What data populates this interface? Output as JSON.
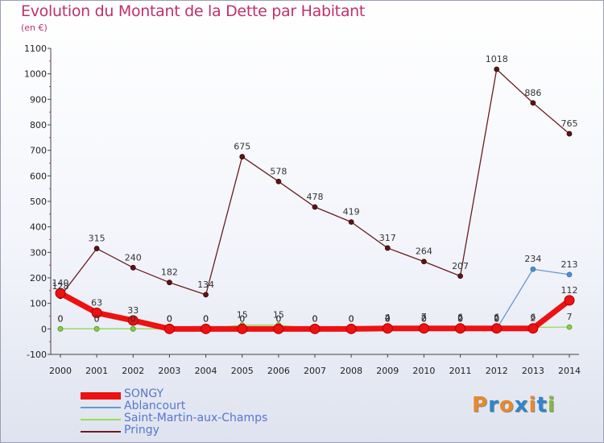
{
  "title": "Evolution du Montant de la Dette par Habitant",
  "subtitle": "(en €)",
  "logo_text": "Proxiti",
  "colors": {
    "title": "#c0306a",
    "legend_text": "#5577cc",
    "logo": [
      "#e8892b",
      "#2f86c9",
      "#e8892b",
      "#2f86c9",
      "#e8892b",
      "#2f86c9",
      "#86b83a"
    ]
  },
  "chart_data": {
    "type": "line",
    "title": "Evolution du Montant de la Dette par Habitant",
    "ylabel": "(en €)",
    "xlabel": "",
    "ylim": [
      -100,
      1100
    ],
    "yticks": [
      -100,
      0,
      100,
      200,
      300,
      400,
      500,
      600,
      700,
      800,
      900,
      1000,
      1100
    ],
    "x": [
      "2000",
      "2001",
      "2002",
      "2003",
      "2004",
      "2005",
      "2006",
      "2007",
      "2008",
      "2009",
      "2010",
      "2011",
      "2012",
      "2013",
      "2014"
    ],
    "grid": false,
    "legend_position": "bottom-left",
    "series": [
      {
        "name": "SONGY",
        "color": "#ee1111",
        "values": [
          140,
          63,
          33,
          0,
          0,
          0,
          0,
          0,
          0,
          2,
          2,
          2,
          2,
          2,
          112
        ],
        "labels": [
          "140",
          "63",
          "33",
          "0",
          "0",
          "0",
          "0",
          "0",
          "0",
          "2",
          "2",
          "2",
          "2",
          "2",
          "112"
        ]
      },
      {
        "name": "Ablancourt",
        "color": "#6699cc",
        "values": [
          0,
          0,
          0,
          0,
          0,
          0,
          0,
          0,
          0,
          0,
          0,
          0,
          0,
          234,
          213
        ],
        "labels": [
          "0",
          "0",
          "0",
          "0",
          "0",
          "0",
          "0",
          "0",
          "0",
          "0",
          "0",
          "0",
          "0",
          "234",
          "213"
        ]
      },
      {
        "name": "Saint-Martin-aux-Champs",
        "color": "#99dd55",
        "values": [
          0,
          0,
          0,
          0,
          0,
          15,
          15,
          0,
          0,
          4,
          7,
          6,
          6,
          6,
          7
        ],
        "labels": [
          "0",
          "0",
          "0",
          "0",
          "0",
          "15",
          "15",
          "0",
          "0",
          "4",
          "7",
          "6",
          "6",
          "6",
          "7"
        ]
      },
      {
        "name": "Pringy",
        "color": "#6b1d1d",
        "values": [
          128,
          315,
          240,
          182,
          134,
          675,
          578,
          478,
          419,
          317,
          264,
          207,
          1018,
          886,
          765
        ],
        "labels": [
          "128",
          "315",
          "240",
          "182",
          "134",
          "675",
          "578",
          "478",
          "419",
          "317",
          "264",
          "207",
          "1018",
          "886",
          "765"
        ]
      }
    ]
  }
}
